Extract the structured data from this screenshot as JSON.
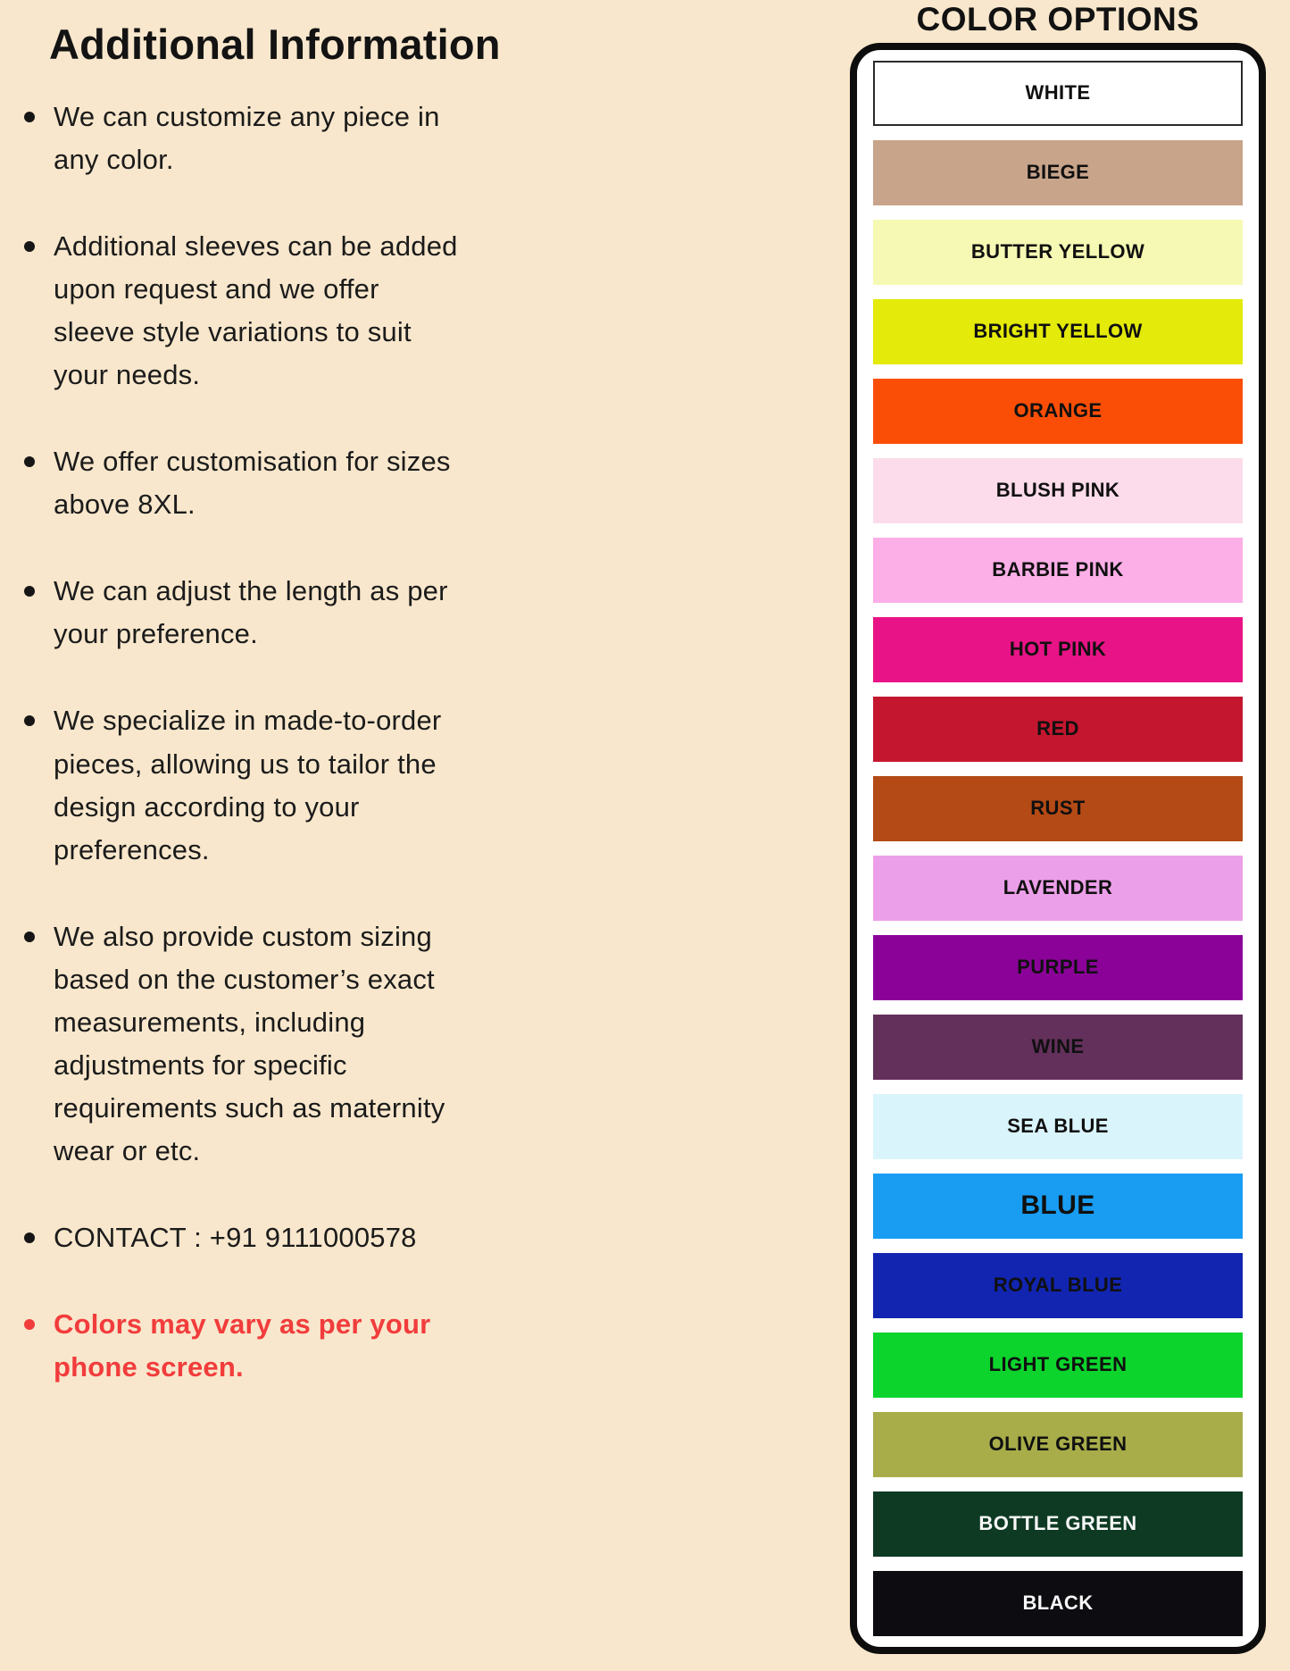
{
  "info": {
    "heading": "Additional Information",
    "highlight_color": "#f23c3c",
    "text_color": "#1b1b1b",
    "bullets": [
      {
        "text": "We can customize any piece in\nany color.",
        "highlight": false
      },
      {
        "text": "Additional sleeves can be added\nupon request and we offer\nsleeve style variations to suit\nyour needs.",
        "highlight": false
      },
      {
        "text": "We offer customisation for sizes\nabove 8XL.",
        "highlight": false
      },
      {
        "text": "We can adjust the length as per\nyour preference.",
        "highlight": false
      },
      {
        "text": "We specialize in made-to-order\npieces, allowing us to tailor the\ndesign according to your\npreferences.",
        "highlight": false
      },
      {
        "text": "We also provide custom sizing\nbased on the customer’s exact\nmeasurements, including\nadjustments for specific\nrequirements such as maternity\nwear or etc.",
        "highlight": false
      },
      {
        "text": "CONTACT : +91 9111000578",
        "highlight": false
      },
      {
        "text": "Colors may vary as per your\nphone screen.",
        "highlight": true
      }
    ]
  },
  "color_options": {
    "title": "COLOR OPTIONS",
    "panel_background": "#ffffff",
    "panel_border_color": "#0d0d0d",
    "page_background": "#f8e7cc",
    "swatches": [
      {
        "label": "WHITE",
        "color": "#ffffff",
        "text": "dark",
        "bordered": true,
        "large": false
      },
      {
        "label": "BIEGE",
        "color": "#c7a48a",
        "text": "dark",
        "bordered": false,
        "large": false
      },
      {
        "label": "BUTTER YELLOW",
        "color": "#f6f9b3",
        "text": "dark",
        "bordered": false,
        "large": false
      },
      {
        "label": "BRIGHT YELLOW",
        "color": "#e4ea09",
        "text": "dark",
        "bordered": false,
        "large": false
      },
      {
        "label": "ORANGE",
        "color": "#fa4e07",
        "text": "dark",
        "bordered": false,
        "large": false
      },
      {
        "label": "BLUSH PINK",
        "color": "#fcdcea",
        "text": "dark",
        "bordered": false,
        "large": false
      },
      {
        "label": "BARBIE PINK",
        "color": "#fcaee7",
        "text": "dark",
        "bordered": false,
        "large": false
      },
      {
        "label": "HOT PINK",
        "color": "#e81386",
        "text": "dark",
        "bordered": false,
        "large": false
      },
      {
        "label": "RED",
        "color": "#c5162f",
        "text": "dark",
        "bordered": false,
        "large": false
      },
      {
        "label": "RUST",
        "color": "#b44a16",
        "text": "dark",
        "bordered": false,
        "large": false
      },
      {
        "label": "LAVENDER",
        "color": "#ec9fe9",
        "text": "dark",
        "bordered": false,
        "large": false
      },
      {
        "label": "PURPLE",
        "color": "#8b0299",
        "text": "dark",
        "bordered": false,
        "large": false
      },
      {
        "label": "WINE",
        "color": "#63305b",
        "text": "dark",
        "bordered": false,
        "large": false
      },
      {
        "label": "SEA BLUE",
        "color": "#daf4fc",
        "text": "dark",
        "bordered": false,
        "large": false
      },
      {
        "label": "BLUE",
        "color": "#189df3",
        "text": "dark",
        "bordered": false,
        "large": true
      },
      {
        "label": "ROYAL BLUE",
        "color": "#1125b1",
        "text": "dark",
        "bordered": false,
        "large": false
      },
      {
        "label": "LIGHT GREEN",
        "color": "#0cd42c",
        "text": "dark",
        "bordered": false,
        "large": false
      },
      {
        "label": "OLIVE GREEN",
        "color": "#a8ad4a",
        "text": "dark",
        "bordered": false,
        "large": false
      },
      {
        "label": "BOTTLE GREEN",
        "color": "#0e3a23",
        "text": "light",
        "bordered": false,
        "large": false
      },
      {
        "label": "BLACK",
        "color": "#0d0d11",
        "text": "light",
        "bordered": false,
        "large": false
      }
    ]
  }
}
